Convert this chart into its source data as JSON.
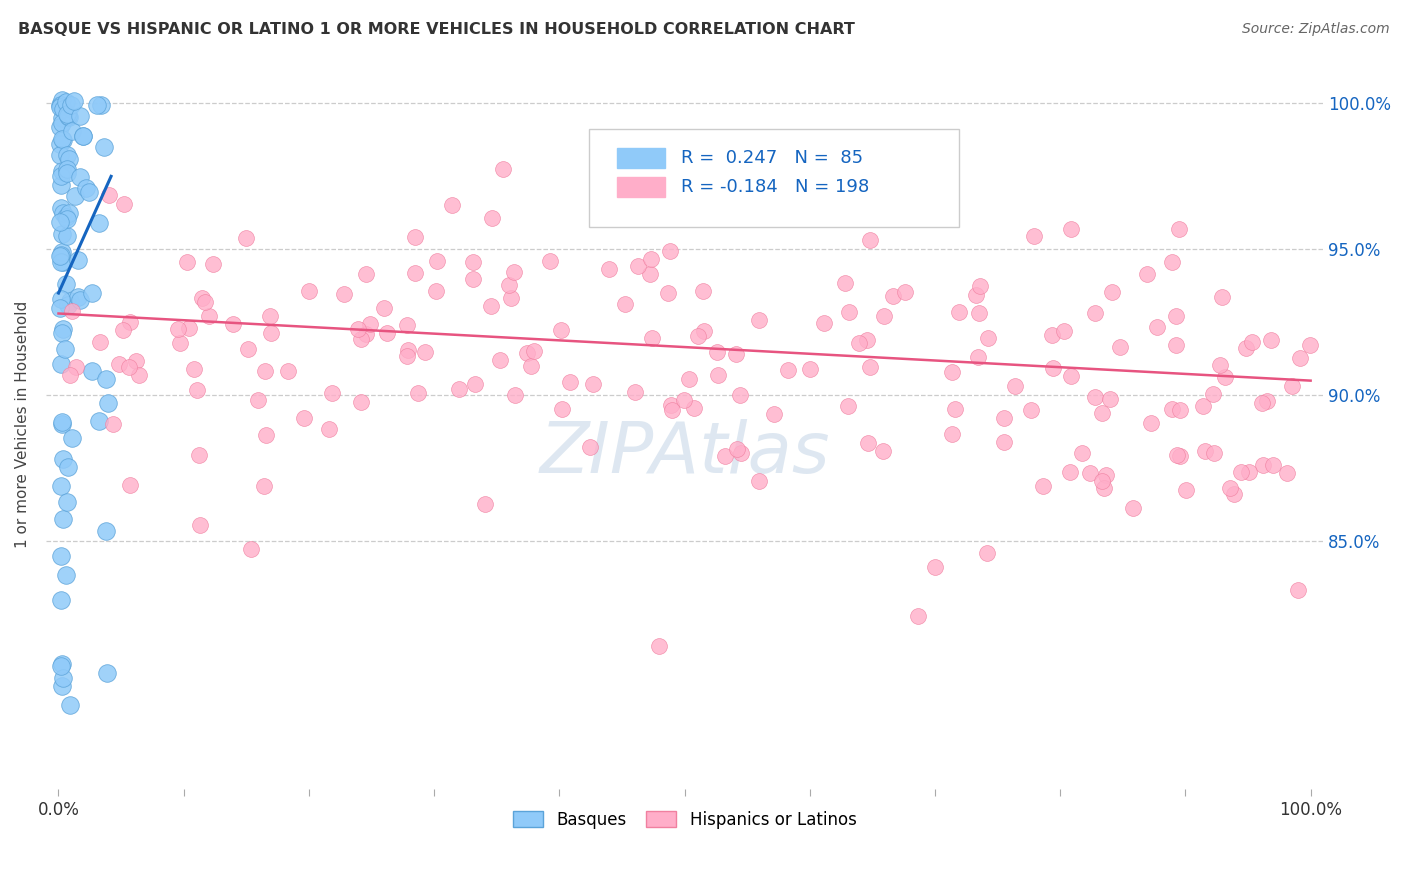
{
  "title": "BASQUE VS HISPANIC OR LATINO 1 OR MORE VEHICLES IN HOUSEHOLD CORRELATION CHART",
  "source": "Source: ZipAtlas.com",
  "ylabel": "1 or more Vehicles in Household",
  "ytick_values": [
    0.85,
    0.9,
    0.95,
    1.0
  ],
  "ytick_labels": [
    "85.0%",
    "90.0%",
    "95.0%",
    "100.0%"
  ],
  "r1": 0.247,
  "n1": 85,
  "r2": -0.184,
  "n2": 198,
  "blue_dot_color": "#90CAF9",
  "blue_dot_edge": "#5BA3D9",
  "pink_dot_color": "#FFAEC9",
  "pink_dot_edge": "#F080A0",
  "blue_line_color": "#1565C0",
  "pink_line_color": "#E75480",
  "legend_text_color": "#1565C0",
  "right_axis_color": "#1565C0",
  "watermark_text": "ZIPAtlas",
  "watermark_color": "#C8D8E8",
  "legend_entries": [
    "Basques",
    "Hispanics or Latinos"
  ],
  "blue_line_x0": 0.0,
  "blue_line_y0": 0.935,
  "blue_line_x1": 0.042,
  "blue_line_y1": 0.975,
  "pink_line_x0": 0.0,
  "pink_line_y0": 0.928,
  "pink_line_x1": 1.0,
  "pink_line_y1": 0.905,
  "xlim_min": -0.01,
  "xlim_max": 1.01,
  "ylim_min": 0.765,
  "ylim_max": 1.015
}
